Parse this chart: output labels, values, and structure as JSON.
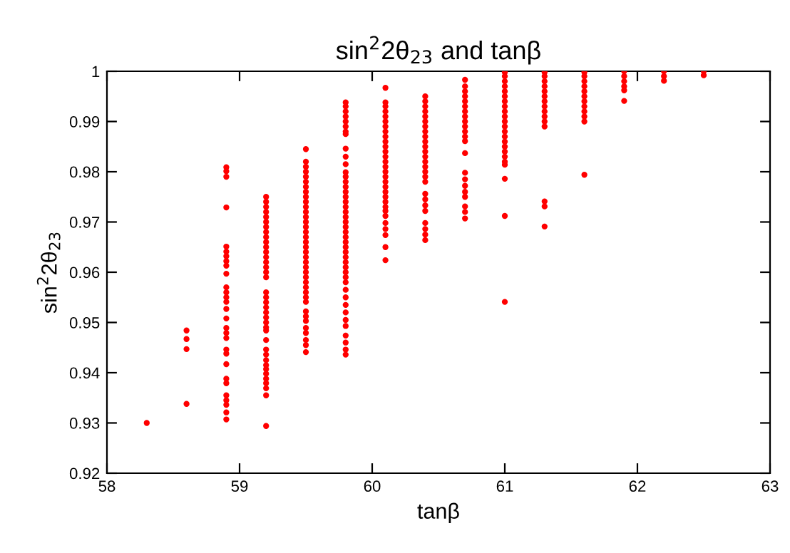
{
  "chart_data": {
    "type": "scatter",
    "title": "sin$^{2}$2θ$_{23}$ and tanβ",
    "xlabel": "tanβ",
    "ylabel": "sin$^{2}$2θ$_{23}$",
    "xlim": [
      58,
      63
    ],
    "xticks": [
      58,
      59,
      60,
      61,
      62,
      63
    ],
    "ylim": [
      0.92,
      1
    ],
    "yticks": [
      0.92,
      0.93,
      0.94,
      0.95,
      0.96,
      0.97,
      0.98,
      0.99,
      1
    ],
    "marker": "circle",
    "series": [
      {
        "color": "#ff0000",
        "x": [
          58.3
        ],
        "values": [
          0.93
        ]
      },
      {
        "color": "#ff0000",
        "x": [
          58.6,
          58.6,
          58.6,
          58.6
        ],
        "values": [
          0.9484,
          0.9467,
          0.9447,
          0.9338
        ]
      },
      {
        "color": "#ff0000",
        "x": [
          58.9,
          58.9,
          58.9,
          58.9,
          58.9,
          58.9,
          58.9,
          58.9,
          58.9,
          58.9,
          58.9,
          58.9,
          58.9,
          58.9,
          58.9,
          58.9,
          58.9,
          58.9,
          58.9,
          58.9,
          58.9,
          58.9,
          58.9,
          58.9,
          58.9,
          58.9,
          58.9,
          58.9,
          58.9
        ],
        "values": [
          0.9809,
          0.9801,
          0.979,
          0.9729,
          0.9651,
          0.9641,
          0.9632,
          0.9622,
          0.9613,
          0.9597,
          0.957,
          0.956,
          0.955,
          0.9541,
          0.9527,
          0.9508,
          0.9489,
          0.9479,
          0.9469,
          0.9446,
          0.9438,
          0.9417,
          0.9388,
          0.9379,
          0.9355,
          0.9345,
          0.9336,
          0.9321,
          0.9307
        ]
      },
      {
        "color": "#ff0000",
        "x": [
          59.2,
          59.2,
          59.2,
          59.2,
          59.2,
          59.2,
          59.2,
          59.2,
          59.2,
          59.2,
          59.2,
          59.2,
          59.2,
          59.2,
          59.2,
          59.2,
          59.2,
          59.2,
          59.2,
          59.2,
          59.2,
          59.2,
          59.2,
          59.2,
          59.2,
          59.2,
          59.2,
          59.2,
          59.2,
          59.2,
          59.2,
          59.2,
          59.2,
          59.2,
          59.2,
          59.2,
          59.2,
          59.2
        ],
        "values": [
          0.975,
          0.974,
          0.973,
          0.972,
          0.971,
          0.97,
          0.969,
          0.968,
          0.967,
          0.966,
          0.965,
          0.964,
          0.963,
          0.962,
          0.961,
          0.96,
          0.959,
          0.956,
          0.955,
          0.954,
          0.953,
          0.952,
          0.951,
          0.95,
          0.949,
          0.9484,
          0.9465,
          0.9446,
          0.9436,
          0.9425,
          0.9415,
          0.9407,
          0.9398,
          0.9388,
          0.9379,
          0.9369,
          0.9355,
          0.9294
        ]
      },
      {
        "color": "#ff0000",
        "x": [
          59.5,
          59.5,
          59.5,
          59.5,
          59.5,
          59.5,
          59.5,
          59.5,
          59.5,
          59.5,
          59.5,
          59.5,
          59.5,
          59.5,
          59.5,
          59.5,
          59.5,
          59.5,
          59.5,
          59.5,
          59.5,
          59.5,
          59.5,
          59.5,
          59.5,
          59.5,
          59.5,
          59.5,
          59.5,
          59.5,
          59.5,
          59.5,
          59.5,
          59.5,
          59.5,
          59.5,
          59.5,
          59.5
        ],
        "values": [
          0.9845,
          0.982,
          0.981,
          0.98,
          0.979,
          0.978,
          0.977,
          0.976,
          0.975,
          0.974,
          0.973,
          0.972,
          0.971,
          0.97,
          0.969,
          0.968,
          0.967,
          0.966,
          0.965,
          0.964,
          0.963,
          0.962,
          0.961,
          0.96,
          0.959,
          0.958,
          0.957,
          0.956,
          0.955,
          0.9541,
          0.9522,
          0.9512,
          0.9503,
          0.9489,
          0.9479,
          0.9465,
          0.9455,
          0.9441
        ]
      },
      {
        "color": "#ff0000",
        "x": [
          59.8,
          59.8,
          59.8,
          59.8,
          59.8,
          59.8,
          59.8,
          59.8,
          59.8,
          59.8,
          59.8,
          59.8,
          59.8,
          59.8,
          59.8,
          59.8,
          59.8,
          59.8,
          59.8,
          59.8,
          59.8,
          59.8,
          59.8,
          59.8,
          59.8,
          59.8,
          59.8,
          59.8,
          59.8,
          59.8,
          59.8,
          59.8,
          59.8,
          59.8,
          59.8,
          59.8,
          59.8,
          59.8,
          59.8,
          59.8,
          59.8,
          59.8,
          59.8,
          59.8
        ],
        "values": [
          0.9938,
          0.993,
          0.992,
          0.991,
          0.99,
          0.989,
          0.988,
          0.9875,
          0.9846,
          0.983,
          0.9815,
          0.9799,
          0.979,
          0.978,
          0.977,
          0.976,
          0.975,
          0.974,
          0.973,
          0.972,
          0.971,
          0.97,
          0.969,
          0.968,
          0.967,
          0.966,
          0.965,
          0.964,
          0.963,
          0.962,
          0.961,
          0.96,
          0.959,
          0.958,
          0.9565,
          0.955,
          0.9535,
          0.952,
          0.9505,
          0.9493,
          0.9474,
          0.946,
          0.9446,
          0.9436
        ]
      },
      {
        "color": "#ff0000",
        "x": [
          60.1,
          60.1,
          60.1,
          60.1,
          60.1,
          60.1,
          60.1,
          60.1,
          60.1,
          60.1,
          60.1,
          60.1,
          60.1,
          60.1,
          60.1,
          60.1,
          60.1,
          60.1,
          60.1,
          60.1,
          60.1,
          60.1,
          60.1,
          60.1,
          60.1,
          60.1,
          60.1,
          60.1,
          60.1,
          60.1
        ],
        "values": [
          0.9967,
          0.9938,
          0.993,
          0.992,
          0.991,
          0.99,
          0.989,
          0.988,
          0.987,
          0.986,
          0.985,
          0.984,
          0.983,
          0.982,
          0.981,
          0.98,
          0.979,
          0.978,
          0.977,
          0.976,
          0.975,
          0.974,
          0.973,
          0.9722,
          0.9712,
          0.9698,
          0.9686,
          0.9674,
          0.965,
          0.9624
        ]
      },
      {
        "color": "#ff0000",
        "x": [
          60.4,
          60.4,
          60.4,
          60.4,
          60.4,
          60.4,
          60.4,
          60.4,
          60.4,
          60.4,
          60.4,
          60.4,
          60.4,
          60.4,
          60.4,
          60.4,
          60.4,
          60.4,
          60.4,
          60.4,
          60.4,
          60.4,
          60.4,
          60.4,
          60.4,
          60.4
        ],
        "values": [
          0.995,
          0.994,
          0.993,
          0.992,
          0.991,
          0.99,
          0.989,
          0.988,
          0.987,
          0.986,
          0.985,
          0.984,
          0.983,
          0.982,
          0.981,
          0.98,
          0.979,
          0.978,
          0.9756,
          0.9745,
          0.9733,
          0.9722,
          0.9698,
          0.9686,
          0.9675,
          0.9664
        ]
      },
      {
        "color": "#ff0000",
        "x": [
          60.7,
          60.7,
          60.7,
          60.7,
          60.7,
          60.7,
          60.7,
          60.7,
          60.7,
          60.7,
          60.7,
          60.7,
          60.7,
          60.7,
          60.7,
          60.7,
          60.7,
          60.7,
          60.7,
          60.7,
          60.7,
          60.7
        ],
        "values": [
          0.9983,
          0.997,
          0.996,
          0.995,
          0.994,
          0.993,
          0.992,
          0.991,
          0.99,
          0.989,
          0.988,
          0.987,
          0.9861,
          0.9837,
          0.9798,
          0.9785,
          0.9772,
          0.976,
          0.975,
          0.9731,
          0.972,
          0.9707
        ]
      },
      {
        "color": "#ff0000",
        "x": [
          61.0,
          61.0,
          61.0,
          61.0,
          61.0,
          61.0,
          61.0,
          61.0,
          61.0,
          61.0,
          61.0,
          61.0,
          61.0,
          61.0,
          61.0,
          61.0,
          61.0,
          61.0,
          61.0,
          61.0,
          61.0,
          61.0,
          61.0
        ],
        "values": [
          0.9998,
          0.999,
          0.998,
          0.997,
          0.996,
          0.995,
          0.994,
          0.993,
          0.992,
          0.991,
          0.99,
          0.989,
          0.988,
          0.987,
          0.986,
          0.985,
          0.984,
          0.983,
          0.982,
          0.9814,
          0.9786,
          0.9712,
          0.9541
        ]
      },
      {
        "color": "#ff0000",
        "x": [
          61.3,
          61.3,
          61.3,
          61.3,
          61.3,
          61.3,
          61.3,
          61.3,
          61.3,
          61.3,
          61.3,
          61.3,
          61.3,
          61.3,
          61.3
        ],
        "values": [
          0.9998,
          0.999,
          0.998,
          0.997,
          0.996,
          0.995,
          0.994,
          0.993,
          0.992,
          0.991,
          0.99,
          0.989,
          0.9741,
          0.9731,
          0.9691
        ]
      },
      {
        "color": "#ff0000",
        "x": [
          61.6,
          61.6,
          61.6,
          61.6,
          61.6,
          61.6,
          61.6,
          61.6,
          61.6,
          61.6,
          61.6,
          61.6
        ],
        "values": [
          0.9998,
          0.999,
          0.998,
          0.997,
          0.996,
          0.995,
          0.994,
          0.993,
          0.992,
          0.991,
          0.99,
          0.9794
        ]
      },
      {
        "color": "#ff0000",
        "x": [
          61.9,
          61.9,
          61.9,
          61.9,
          61.9,
          61.9
        ],
        "values": [
          1.0,
          0.999,
          0.998,
          0.997,
          0.9962,
          0.9941
        ]
      },
      {
        "color": "#ff0000",
        "x": [
          62.2,
          62.2,
          62.2
        ],
        "values": [
          1.0,
          0.999,
          0.9981
        ]
      },
      {
        "color": "#ff0000",
        "x": [
          62.5,
          62.5
        ],
        "values": [
          1.0,
          0.9992
        ]
      }
    ]
  }
}
